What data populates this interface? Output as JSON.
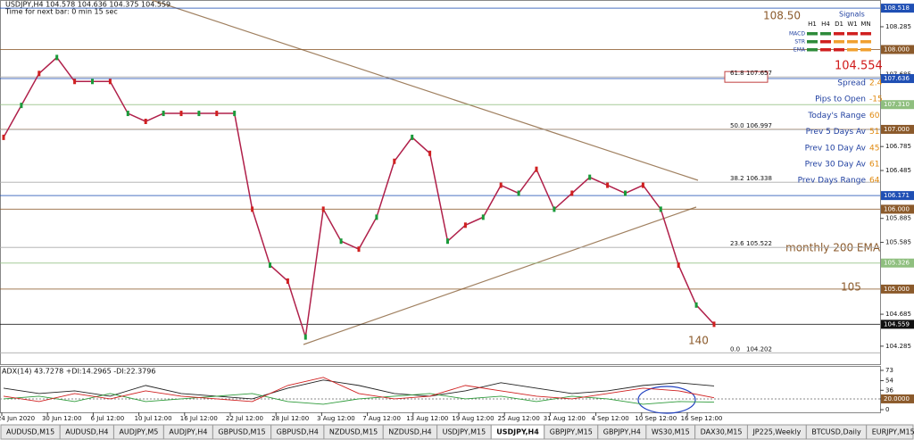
{
  "header": {
    "symbol_line": "USDJPY,H4  104.578 104.636 104.375 104.559",
    "timer": "Time for next bar: 0 min 15 sec"
  },
  "price_axis": {
    "range": [
      104.06,
      108.62
    ],
    "ticks": [
      108.285,
      107.685,
      106.785,
      106.485,
      105.885,
      105.585,
      104.685,
      104.285
    ],
    "boxes": [
      {
        "value": 108.518,
        "label": "108.518",
        "color": "#1f4fb4"
      },
      {
        "value": 108,
        "label": "108.000",
        "color": "#8b5a2b"
      },
      {
        "value": 107.636,
        "label": "107.636",
        "color": "#1f4fb4"
      },
      {
        "value": 107.31,
        "label": "107.310",
        "color": "#8fbf7f"
      },
      {
        "value": 107,
        "label": "107.000",
        "color": "#8b5a2b"
      },
      {
        "value": 106.171,
        "label": "106.171",
        "color": "#1f4fb4"
      },
      {
        "value": 106,
        "label": "106.000",
        "color": "#8b5a2b"
      },
      {
        "value": 105.326,
        "label": "105.326",
        "color": "#8fbf7f"
      },
      {
        "value": 105,
        "label": "105.000",
        "color": "#8b5a2b"
      },
      {
        "value": 104.559,
        "label": "104.559",
        "color": "#111111"
      }
    ]
  },
  "fib_levels": [
    {
      "ratio": "61.8",
      "price": 107.657,
      "boxed": true
    },
    {
      "ratio": "50.0",
      "price": 106.997
    },
    {
      "ratio": "38.2",
      "price": 106.338
    },
    {
      "ratio": "23.6",
      "price": 105.522
    },
    {
      "ratio": "0.0",
      "price": 104.202
    }
  ],
  "price_series": {
    "color": "#b0204a",
    "values": [
      106.9,
      107.3,
      107.7,
      107.9,
      107.6,
      107.6,
      107.6,
      107.2,
      107.1,
      107.2,
      107.2,
      107.2,
      107.2,
      107.2,
      106.0,
      105.3,
      105.1,
      104.4,
      106.0,
      105.6,
      105.5,
      105.9,
      106.6,
      106.9,
      106.7,
      105.6,
      105.8,
      105.9,
      106.3,
      106.2,
      106.5,
      106.0,
      106.2,
      106.4,
      106.3,
      106.2,
      106.3,
      106.0,
      105.3,
      104.8,
      104.559
    ]
  },
  "annotations": [
    "108.50",
    "monthly 200 EMA",
    "105",
    "140"
  ],
  "signals": {
    "title": "Signals",
    "columns": [
      "H1",
      "H4",
      "D1",
      "W1",
      "MN"
    ],
    "rows": [
      {
        "name": "MACD",
        "colors": [
          "#2e8b3a",
          "#2e8b3a",
          "#d02020",
          "#d02020",
          "#d02020"
        ]
      },
      {
        "name": "STR",
        "colors": [
          "#2e8b3a",
          "#d02020",
          "#f0a030",
          "#f0a030",
          "#f0a030"
        ]
      },
      {
        "name": "EMA",
        "colors": [
          "#2e8b3a",
          "#d02020",
          "#d02020",
          "#f0a030",
          "#f0a030"
        ]
      }
    ]
  },
  "info": {
    "price": "104.554",
    "rows": [
      {
        "label": "Spread",
        "value": 2.4
      },
      {
        "label": "Pips to Open",
        "value": -15
      },
      {
        "label": "Today's Range",
        "value": 60
      },
      {
        "label": "Prev 5 Days Av",
        "value": 51
      },
      {
        "label": "Prev 10 Day Av",
        "value": 45
      },
      {
        "label": "Prev 30 Day Av",
        "value": 61
      },
      {
        "label": "Prev Days Range",
        "value": 64
      }
    ]
  },
  "time_axis": [
    "24 Jun 2020",
    "30 Jun 12:00",
    "6 Jul 12:00",
    "10 Jul 12:00",
    "16 Jul 12:00",
    "22 Jul 12:00",
    "28 Jul 12:00",
    "3 Aug 12:00",
    "7 Aug 12:00",
    "13 Aug 12:00",
    "19 Aug 12:00",
    "25 Aug 12:00",
    "31 Aug 12:00",
    "4 Sep 12:00",
    "10 Sep 12:00",
    "16 Sep 12:00"
  ],
  "adx_panel": {
    "label": "ADX(14) 43.7278 +DI:14.2965 -DI:22.3796",
    "range": [
      0,
      73
    ],
    "ticks": [
      73,
      54,
      36,
      {
        "value": 20,
        "label": "20.0000"
      },
      0
    ],
    "series": [
      {
        "name": "ADX",
        "color": "#222222",
        "values": [
          40,
          30,
          35,
          25,
          45,
          30,
          25,
          20,
          40,
          55,
          45,
          30,
          25,
          35,
          50,
          40,
          30,
          35,
          45,
          50,
          44
        ]
      },
      {
        "name": "+DI",
        "color": "#2e9b3a",
        "values": [
          20,
          25,
          15,
          30,
          15,
          20,
          25,
          30,
          15,
          10,
          20,
          25,
          30,
          20,
          25,
          15,
          25,
          20,
          10,
          15,
          14
        ]
      },
      {
        "name": "-DI",
        "color": "#d02020",
        "values": [
          25,
          15,
          30,
          20,
          35,
          25,
          20,
          15,
          45,
          60,
          30,
          20,
          25,
          45,
          35,
          25,
          20,
          30,
          40,
          35,
          22
        ]
      }
    ]
  },
  "tabs": [
    {
      "label": "AUDUSD,M15"
    },
    {
      "label": "AUDUSD,H4"
    },
    {
      "label": "AUDJPY,M5"
    },
    {
      "label": "AUDJPY,H4"
    },
    {
      "label": "GBPUSD,M15"
    },
    {
      "label": "GBPUSD,H4"
    },
    {
      "label": "NZDUSD,M15"
    },
    {
      "label": "NZDUSD,H4"
    },
    {
      "label": "USDJPY,M15"
    },
    {
      "label": "USDJPY,H4",
      "active": true
    },
    {
      "label": "GBPJPY,M15"
    },
    {
      "label": "GBPJPY,H4"
    },
    {
      "label": "WS30,M15"
    },
    {
      "label": "DAX30,M15"
    },
    {
      "label": "JP225,Weekly"
    },
    {
      "label": "BTCUSD,Daily"
    },
    {
      "label": "EURJPY,M15"
    },
    {
      "label": "EU"
    }
  ]
}
